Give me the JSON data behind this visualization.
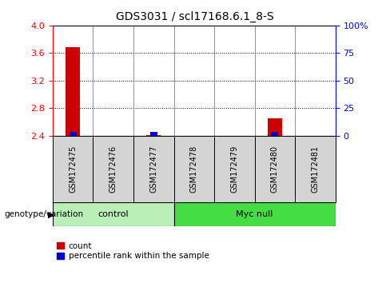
{
  "title": "GDS3031 / scl17168.6.1_8-S",
  "samples": [
    "GSM172475",
    "GSM172476",
    "GSM172477",
    "GSM172478",
    "GSM172479",
    "GSM172480",
    "GSM172481"
  ],
  "control_count": 3,
  "myc_null_count": 4,
  "ylim_left": [
    2.4,
    4.0
  ],
  "yticks_left": [
    2.4,
    2.8,
    3.2,
    3.6,
    4.0
  ],
  "yticks_right": [
    0,
    25,
    50,
    75,
    100
  ],
  "count_values": [
    3.68,
    2.4,
    2.41,
    2.4,
    2.4,
    2.65,
    2.4
  ],
  "percentile_values": [
    2.455,
    2.4,
    2.455,
    2.4,
    2.4,
    2.455,
    2.4
  ],
  "bar_width": 0.35,
  "pct_bar_width": 0.18,
  "count_color": "#CC0000",
  "percentile_color": "#0000CC",
  "baseline": 2.4,
  "legend_count": "count",
  "legend_percentile": "percentile rank within the sample",
  "xlabel_group": "genotype/variation",
  "control_color": "#b8f0b8",
  "myc_null_color": "#44dd44",
  "sample_box_color": "#d4d4d4",
  "title_fontsize": 10,
  "tick_fontsize": 8,
  "label_fontsize": 8
}
